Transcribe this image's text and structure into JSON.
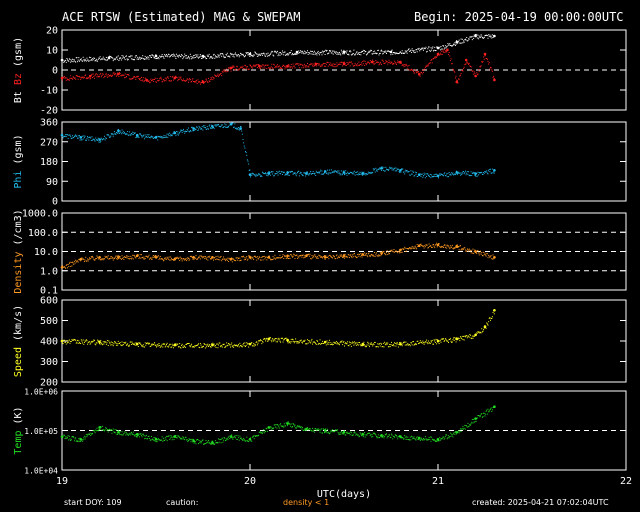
{
  "header": {
    "title": "ACE RTSW (Estimated) MAG & SWEPAM",
    "begin": "Begin: 2025-04-19 00:00:00UTC"
  },
  "footer": {
    "start_doy": "start DOY: 109",
    "caution": "caution:",
    "density_note": "density < 1",
    "created": "created: 2025-04-21 07:02:04UTC"
  },
  "colors": {
    "bt": "#ffffff",
    "bz": "#ff2020",
    "phi": "#22bbee",
    "density": "#ff9922",
    "speed": "#ffff22",
    "temp": "#22dd22",
    "axes": "#ffffff",
    "background": "#000000"
  },
  "chart_data": {
    "type": "scatter",
    "xlabel": "UTC(days)",
    "xlim": [
      19,
      22
    ],
    "xticks": [
      "19",
      "20",
      "21",
      "22"
    ],
    "panels": [
      {
        "id": "mag",
        "ylabel_parts": [
          "Bt",
          "Bz",
          "(gsm)"
        ],
        "ylabel_colors": [
          "#ffffff",
          "#ff2020",
          "#ffffff"
        ],
        "ylim": [
          -20,
          20
        ],
        "yticks": [
          "-20",
          "-10",
          "0",
          "10",
          "20"
        ],
        "ref_lines": [
          0
        ],
        "series": [
          {
            "color": "#ffffff",
            "x": [
              19.0,
              19.25,
              19.5,
              19.75,
              20.0,
              20.25,
              20.5,
              20.75,
              21.0,
              21.1,
              21.2,
              21.3
            ],
            "y": [
              5,
              6,
              7,
              7,
              8,
              9,
              9,
              9,
              11,
              14,
              17,
              17
            ]
          },
          {
            "color": "#ff2020",
            "x": [
              19.0,
              19.15,
              19.3,
              19.45,
              19.6,
              19.75,
              19.9,
              20.05,
              20.2,
              20.35,
              20.5,
              20.65,
              20.8,
              20.9,
              21.0,
              21.05,
              21.1,
              21.15,
              21.2,
              21.25,
              21.3
            ],
            "y": [
              -4,
              -3,
              -2,
              -5,
              -4,
              -6,
              1,
              2,
              2,
              3,
              3,
              4,
              4,
              -2,
              8,
              10,
              -6,
              5,
              -3,
              8,
              -5
            ]
          }
        ]
      },
      {
        "id": "phi",
        "ylabel_parts": [
          "Phi",
          "(gsm)"
        ],
        "ylabel_colors": [
          "#22bbee",
          "#ffffff"
        ],
        "ylim": [
          0,
          360
        ],
        "yticks": [
          "0",
          "90",
          "180",
          "270",
          "360"
        ],
        "ref_lines": [],
        "series": [
          {
            "color": "#22bbee",
            "x": [
              19.0,
              19.1,
              19.2,
              19.3,
              19.4,
              19.5,
              19.6,
              19.7,
              19.8,
              19.9,
              19.95,
              20.0,
              20.1,
              20.2,
              20.3,
              20.4,
              20.5,
              20.6,
              20.7,
              20.8,
              20.9,
              21.0,
              21.1,
              21.2,
              21.3
            ],
            "y": [
              300,
              290,
              280,
              320,
              300,
              290,
              310,
              330,
              340,
              350,
              330,
              120,
              125,
              130,
              125,
              135,
              130,
              125,
              150,
              140,
              120,
              115,
              130,
              125,
              140
            ]
          }
        ]
      },
      {
        "id": "density",
        "ylabel_parts": [
          "Density",
          "(/cm3)"
        ],
        "ylabel_colors": [
          "#ff9922",
          "#ffffff"
        ],
        "ylim": [
          0.1,
          1000.0
        ],
        "scale": "log",
        "yticks": [
          "0.1",
          "1.0",
          "10.0",
          "100.0",
          "1000.0"
        ],
        "ref_lines": [
          1.0,
          10.0,
          100.0
        ],
        "series": [
          {
            "color": "#ff9922",
            "x": [
              19.0,
              19.1,
              19.2,
              19.3,
              19.4,
              19.5,
              19.6,
              19.7,
              19.8,
              19.9,
              20.0,
              20.1,
              20.2,
              20.3,
              20.4,
              20.5,
              20.6,
              20.7,
              20.8,
              20.9,
              21.0,
              21.1,
              21.2,
              21.3
            ],
            "y": [
              1.5,
              4,
              5,
              5,
              6,
              5,
              4,
              5,
              5,
              4,
              5,
              5,
              6,
              6,
              5,
              6,
              7,
              8,
              12,
              20,
              22,
              18,
              10,
              5
            ]
          }
        ]
      },
      {
        "id": "speed",
        "ylabel_parts": [
          "Speed",
          "(km/s)"
        ],
        "ylabel_colors": [
          "#ffff22",
          "#ffffff"
        ],
        "ylim": [
          200,
          600
        ],
        "yticks": [
          "200",
          "300",
          "400",
          "500",
          "600"
        ],
        "ref_lines": [],
        "series": [
          {
            "color": "#ffff22",
            "x": [
              19.0,
              19.2,
              19.4,
              19.6,
              19.8,
              20.0,
              20.1,
              20.2,
              20.4,
              20.6,
              20.8,
              21.0,
              21.1,
              21.2,
              21.25,
              21.3
            ],
            "y": [
              400,
              395,
              385,
              380,
              380,
              385,
              410,
              405,
              395,
              385,
              385,
              400,
              410,
              430,
              470,
              550
            ]
          }
        ]
      },
      {
        "id": "temp",
        "ylabel_parts": [
          "Temp",
          "(K)"
        ],
        "ylabel_colors": [
          "#22dd22",
          "#ffffff"
        ],
        "ylim": [
          10000,
          1000000
        ],
        "scale": "log",
        "yticks": [
          "1.0E+04",
          "1.0E+05",
          "1.0E+06"
        ],
        "ref_lines": [
          100000
        ],
        "series": [
          {
            "color": "#22dd22",
            "x": [
              19.0,
              19.1,
              19.2,
              19.3,
              19.4,
              19.5,
              19.6,
              19.7,
              19.8,
              19.9,
              20.0,
              20.1,
              20.2,
              20.3,
              20.4,
              20.5,
              20.6,
              20.7,
              20.8,
              20.9,
              21.0,
              21.1,
              21.2,
              21.3
            ],
            "y": [
              70000,
              60000,
              120000,
              90000,
              80000,
              60000,
              70000,
              55000,
              50000,
              70000,
              60000,
              120000,
              150000,
              110000,
              100000,
              90000,
              80000,
              75000,
              70000,
              65000,
              60000,
              90000,
              200000,
              400000
            ]
          }
        ]
      }
    ]
  }
}
